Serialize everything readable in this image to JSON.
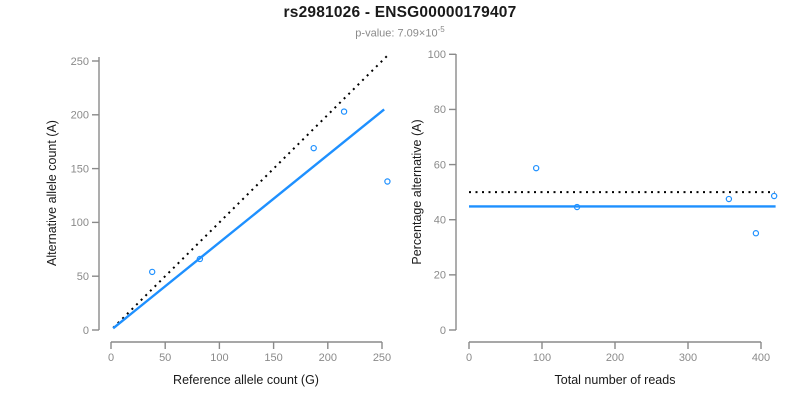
{
  "header": {
    "title": "rs2981026 - ENSG00000179407",
    "subtitle_prefix": "p-value: 7.09×10",
    "subtitle_exponent": "-5"
  },
  "colors": {
    "accent_blue": "#1E90FF",
    "reference_black": "#000000",
    "axis_gray": "#8a8a8a"
  },
  "chart_data": [
    {
      "type": "scatter",
      "name": "allele-counts",
      "xlabel": "Reference allele count (G)",
      "ylabel": "Alternative allele count (A)",
      "xticks": [
        0,
        50,
        100,
        150,
        200,
        250
      ],
      "yticks": [
        0,
        50,
        100,
        150,
        200,
        250
      ],
      "xlim": [
        0,
        255
      ],
      "ylim": [
        0,
        255
      ],
      "grid": false,
      "legend": "none",
      "point_color": "#1E90FF",
      "points": [
        [
          38,
          54
        ],
        [
          82,
          66
        ],
        [
          187,
          169
        ],
        [
          215,
          203
        ],
        [
          255,
          138
        ]
      ],
      "lines": [
        {
          "role": "identity-line",
          "style": "dotted",
          "color": "#000000",
          "x1": 2,
          "y1": 2,
          "x2": 256,
          "y2": 256
        },
        {
          "role": "regression-line",
          "style": "solid",
          "color": "#1E90FF",
          "x1": 2,
          "y1": 1.6,
          "x2": 252,
          "y2": 205
        }
      ]
    },
    {
      "type": "scatter",
      "name": "percentage-alternative",
      "xlabel": "Total number of reads",
      "ylabel": "Percentage alternative (A)",
      "xticks": [
        0,
        100,
        200,
        300,
        400
      ],
      "yticks": [
        0,
        20,
        40,
        60,
        80,
        100
      ],
      "xlim": [
        0,
        420
      ],
      "ylim": [
        0,
        100
      ],
      "grid": false,
      "legend": "none",
      "point_color": "#1E90FF",
      "points": [
        [
          92,
          58.7
        ],
        [
          148,
          44.6
        ],
        [
          356,
          47.5
        ],
        [
          418,
          48.6
        ],
        [
          393,
          35.1
        ]
      ],
      "lines": [
        {
          "role": "expected-50pct-line",
          "style": "dotted",
          "color": "#000000",
          "x1": 0,
          "y1": 50,
          "x2": 419,
          "y2": 50
        },
        {
          "role": "mean-percentage-line",
          "style": "solid",
          "color": "#1E90FF",
          "x1": 0,
          "y1": 44.8,
          "x2": 420,
          "y2": 44.8
        }
      ]
    }
  ]
}
